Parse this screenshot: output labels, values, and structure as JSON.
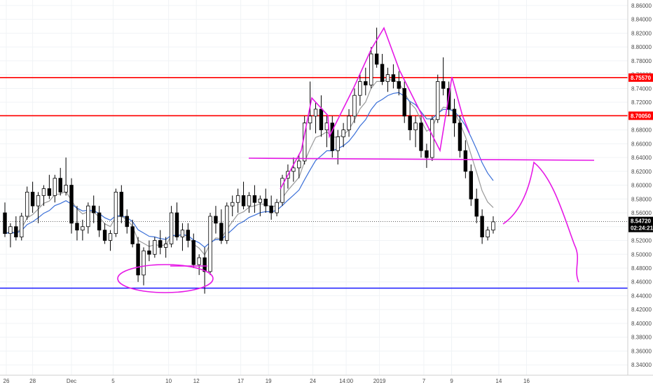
{
  "chart_data": {
    "type": "candlestick",
    "symbol_note": "",
    "y_axis": {
      "ticks": [
        "8.86000",
        "8.84000",
        "8.82000",
        "8.80000",
        "8.78000",
        "8.76000",
        "8.74000",
        "8.72000",
        "8.70000",
        "8.68000",
        "8.66000",
        "8.64000",
        "8.62000",
        "8.60000",
        "8.58000",
        "8.56000",
        "8.54000",
        "8.52000",
        "8.50000",
        "8.48000",
        "8.46000",
        "8.44000",
        "8.42000",
        "8.40000",
        "8.38000",
        "8.36000",
        "8.34000"
      ],
      "ylim": [
        8.325,
        8.868
      ]
    },
    "x_axis": {
      "ticks": [
        {
          "label": "26",
          "bar": 0.25
        },
        {
          "label": "28",
          "bar": 5
        },
        {
          "label": "Dec",
          "bar": 12
        },
        {
          "label": "5",
          "bar": 19.5
        },
        {
          "label": "10",
          "bar": 29.5
        },
        {
          "label": "12",
          "bar": 34.5
        },
        {
          "label": "17",
          "bar": 42.5
        },
        {
          "label": "19",
          "bar": 47.5
        },
        {
          "label": "24",
          "bar": 55.5
        },
        {
          "label": "14:00",
          "bar": 61.5
        },
        {
          "label": "2019",
          "bar": 67.5
        },
        {
          "label": "7",
          "bar": 75.5
        },
        {
          "label": "9",
          "bar": 80.5
        },
        {
          "label": "14",
          "bar": 89
        },
        {
          "label": "16",
          "bar": 94
        }
      ]
    },
    "horizontal_lines": [
      {
        "name": "resistance-upper",
        "value": 8.7557,
        "color": "#ff0000",
        "label": "8.75570"
      },
      {
        "name": "resistance-lower",
        "value": 8.7005,
        "color": "#ff0000",
        "label": "8.70050"
      },
      {
        "name": "support",
        "value": 8.451,
        "color": "#1a1aff"
      }
    ],
    "last_price": {
      "label": "8.54720",
      "value": 8.5472,
      "countdown": "02:24:21",
      "color": "#000000"
    },
    "colors": {
      "up": "#ffffff",
      "down": "#000000",
      "wick": "#000000",
      "ma_fast": "#9a9a9a",
      "ma_slow": "#3a6fd8",
      "drawing": "#e619e6"
    },
    "candles": [
      [
        8.56,
        8.575,
        8.525,
        8.53
      ],
      [
        8.53,
        8.545,
        8.51,
        8.54
      ],
      [
        8.54,
        8.555,
        8.52,
        8.525
      ],
      [
        8.525,
        8.56,
        8.52,
        8.555
      ],
      [
        8.555,
        8.598,
        8.55,
        8.59
      ],
      [
        8.59,
        8.605,
        8.56,
        8.57
      ],
      [
        8.57,
        8.59,
        8.545,
        8.585
      ],
      [
        8.585,
        8.6,
        8.57,
        8.595
      ],
      [
        8.595,
        8.615,
        8.58,
        8.585
      ],
      [
        8.585,
        8.615,
        8.575,
        8.61
      ],
      [
        8.61,
        8.625,
        8.585,
        8.59
      ],
      [
        8.59,
        8.64,
        8.585,
        8.6
      ],
      [
        8.6,
        8.61,
        8.53,
        8.545
      ],
      [
        8.545,
        8.57,
        8.52,
        8.535
      ],
      [
        8.535,
        8.55,
        8.52,
        8.54
      ],
      [
        8.54,
        8.575,
        8.53,
        8.57
      ],
      [
        8.57,
        8.585,
        8.545,
        8.56
      ],
      [
        8.56,
        8.57,
        8.525,
        8.535
      ],
      [
        8.535,
        8.545,
        8.515,
        8.52
      ],
      [
        8.52,
        8.535,
        8.505,
        8.53
      ],
      [
        8.53,
        8.595,
        8.525,
        8.59
      ],
      [
        8.59,
        8.6,
        8.545,
        8.555
      ],
      [
        8.555,
        8.565,
        8.53,
        8.54
      ],
      [
        8.54,
        8.55,
        8.51,
        8.515
      ],
      [
        8.515,
        8.525,
        8.46,
        8.47
      ],
      [
        8.47,
        8.51,
        8.455,
        8.505
      ],
      [
        8.505,
        8.52,
        8.49,
        8.5
      ],
      [
        8.5,
        8.525,
        8.495,
        8.52
      ],
      [
        8.52,
        8.535,
        8.5,
        8.51
      ],
      [
        8.51,
        8.525,
        8.495,
        8.515
      ],
      [
        8.515,
        8.57,
        8.51,
        8.56
      ],
      [
        8.56,
        8.575,
        8.52,
        8.525
      ],
      [
        8.525,
        8.545,
        8.505,
        8.535
      ],
      [
        8.535,
        8.545,
        8.51,
        8.52
      ],
      [
        8.52,
        8.53,
        8.48,
        8.485
      ],
      [
        8.485,
        8.5,
        8.47,
        8.495
      ],
      [
        8.495,
        8.51,
        8.443,
        8.475
      ],
      [
        8.475,
        8.56,
        8.47,
        8.555
      ],
      [
        8.555,
        8.57,
        8.53,
        8.545
      ],
      [
        8.545,
        8.565,
        8.515,
        8.52
      ],
      [
        8.52,
        8.575,
        8.515,
        8.57
      ],
      [
        8.57,
        8.585,
        8.555,
        8.575
      ],
      [
        8.575,
        8.595,
        8.56,
        8.585
      ],
      [
        8.585,
        8.605,
        8.565,
        8.57
      ],
      [
        8.57,
        8.59,
        8.56,
        8.585
      ],
      [
        8.585,
        8.6,
        8.56,
        8.575
      ],
      [
        8.575,
        8.585,
        8.555,
        8.58
      ],
      [
        8.58,
        8.595,
        8.56,
        8.57
      ],
      [
        8.57,
        8.585,
        8.55,
        8.56
      ],
      [
        8.56,
        8.58,
        8.555,
        8.575
      ],
      [
        8.575,
        8.615,
        8.57,
        8.61
      ],
      [
        8.61,
        8.63,
        8.595,
        8.62
      ],
      [
        8.62,
        8.64,
        8.605,
        8.625
      ],
      [
        8.625,
        8.645,
        8.61,
        8.635
      ],
      [
        8.635,
        8.7,
        8.63,
        8.69
      ],
      [
        8.69,
        8.75,
        8.68,
        8.7
      ],
      [
        8.7,
        8.72,
        8.675,
        8.71
      ],
      [
        8.71,
        8.73,
        8.67,
        8.68
      ],
      [
        8.68,
        8.7,
        8.655,
        8.69
      ],
      [
        8.69,
        8.7,
        8.64,
        8.65
      ],
      [
        8.65,
        8.68,
        8.63,
        8.67
      ],
      [
        8.67,
        8.69,
        8.655,
        8.68
      ],
      [
        8.68,
        8.71,
        8.67,
        8.7
      ],
      [
        8.7,
        8.74,
        8.69,
        8.73
      ],
      [
        8.73,
        8.76,
        8.715,
        8.75
      ],
      [
        8.75,
        8.77,
        8.73,
        8.745
      ],
      [
        8.745,
        8.8,
        8.74,
        8.79
      ],
      [
        8.79,
        8.828,
        8.77,
        8.775
      ],
      [
        8.775,
        8.79,
        8.745,
        8.75
      ],
      [
        8.75,
        8.77,
        8.735,
        8.76
      ],
      [
        8.76,
        8.775,
        8.74,
        8.75
      ],
      [
        8.75,
        8.765,
        8.73,
        8.74
      ],
      [
        8.74,
        8.75,
        8.69,
        8.7
      ],
      [
        8.7,
        8.72,
        8.665,
        8.68
      ],
      [
        8.68,
        8.7,
        8.655,
        8.69
      ],
      [
        8.69,
        8.7,
        8.64,
        8.65
      ],
      [
        8.65,
        8.66,
        8.625,
        8.64
      ],
      [
        8.64,
        8.7,
        8.635,
        8.695
      ],
      [
        8.695,
        8.76,
        8.69,
        8.75
      ],
      [
        8.75,
        8.785,
        8.73,
        8.74
      ],
      [
        8.74,
        8.75,
        8.7,
        8.71
      ],
      [
        8.71,
        8.725,
        8.67,
        8.69
      ],
      [
        8.69,
        8.7,
        8.64,
        8.65
      ],
      [
        8.65,
        8.665,
        8.61,
        8.62
      ],
      [
        8.62,
        8.63,
        8.57,
        8.58
      ],
      [
        8.58,
        8.595,
        8.545,
        8.555
      ],
      [
        8.555,
        8.565,
        8.515,
        8.525
      ],
      [
        8.525,
        8.54,
        8.52,
        8.535
      ],
      [
        8.535,
        8.555,
        8.53,
        8.547
      ]
    ]
  }
}
